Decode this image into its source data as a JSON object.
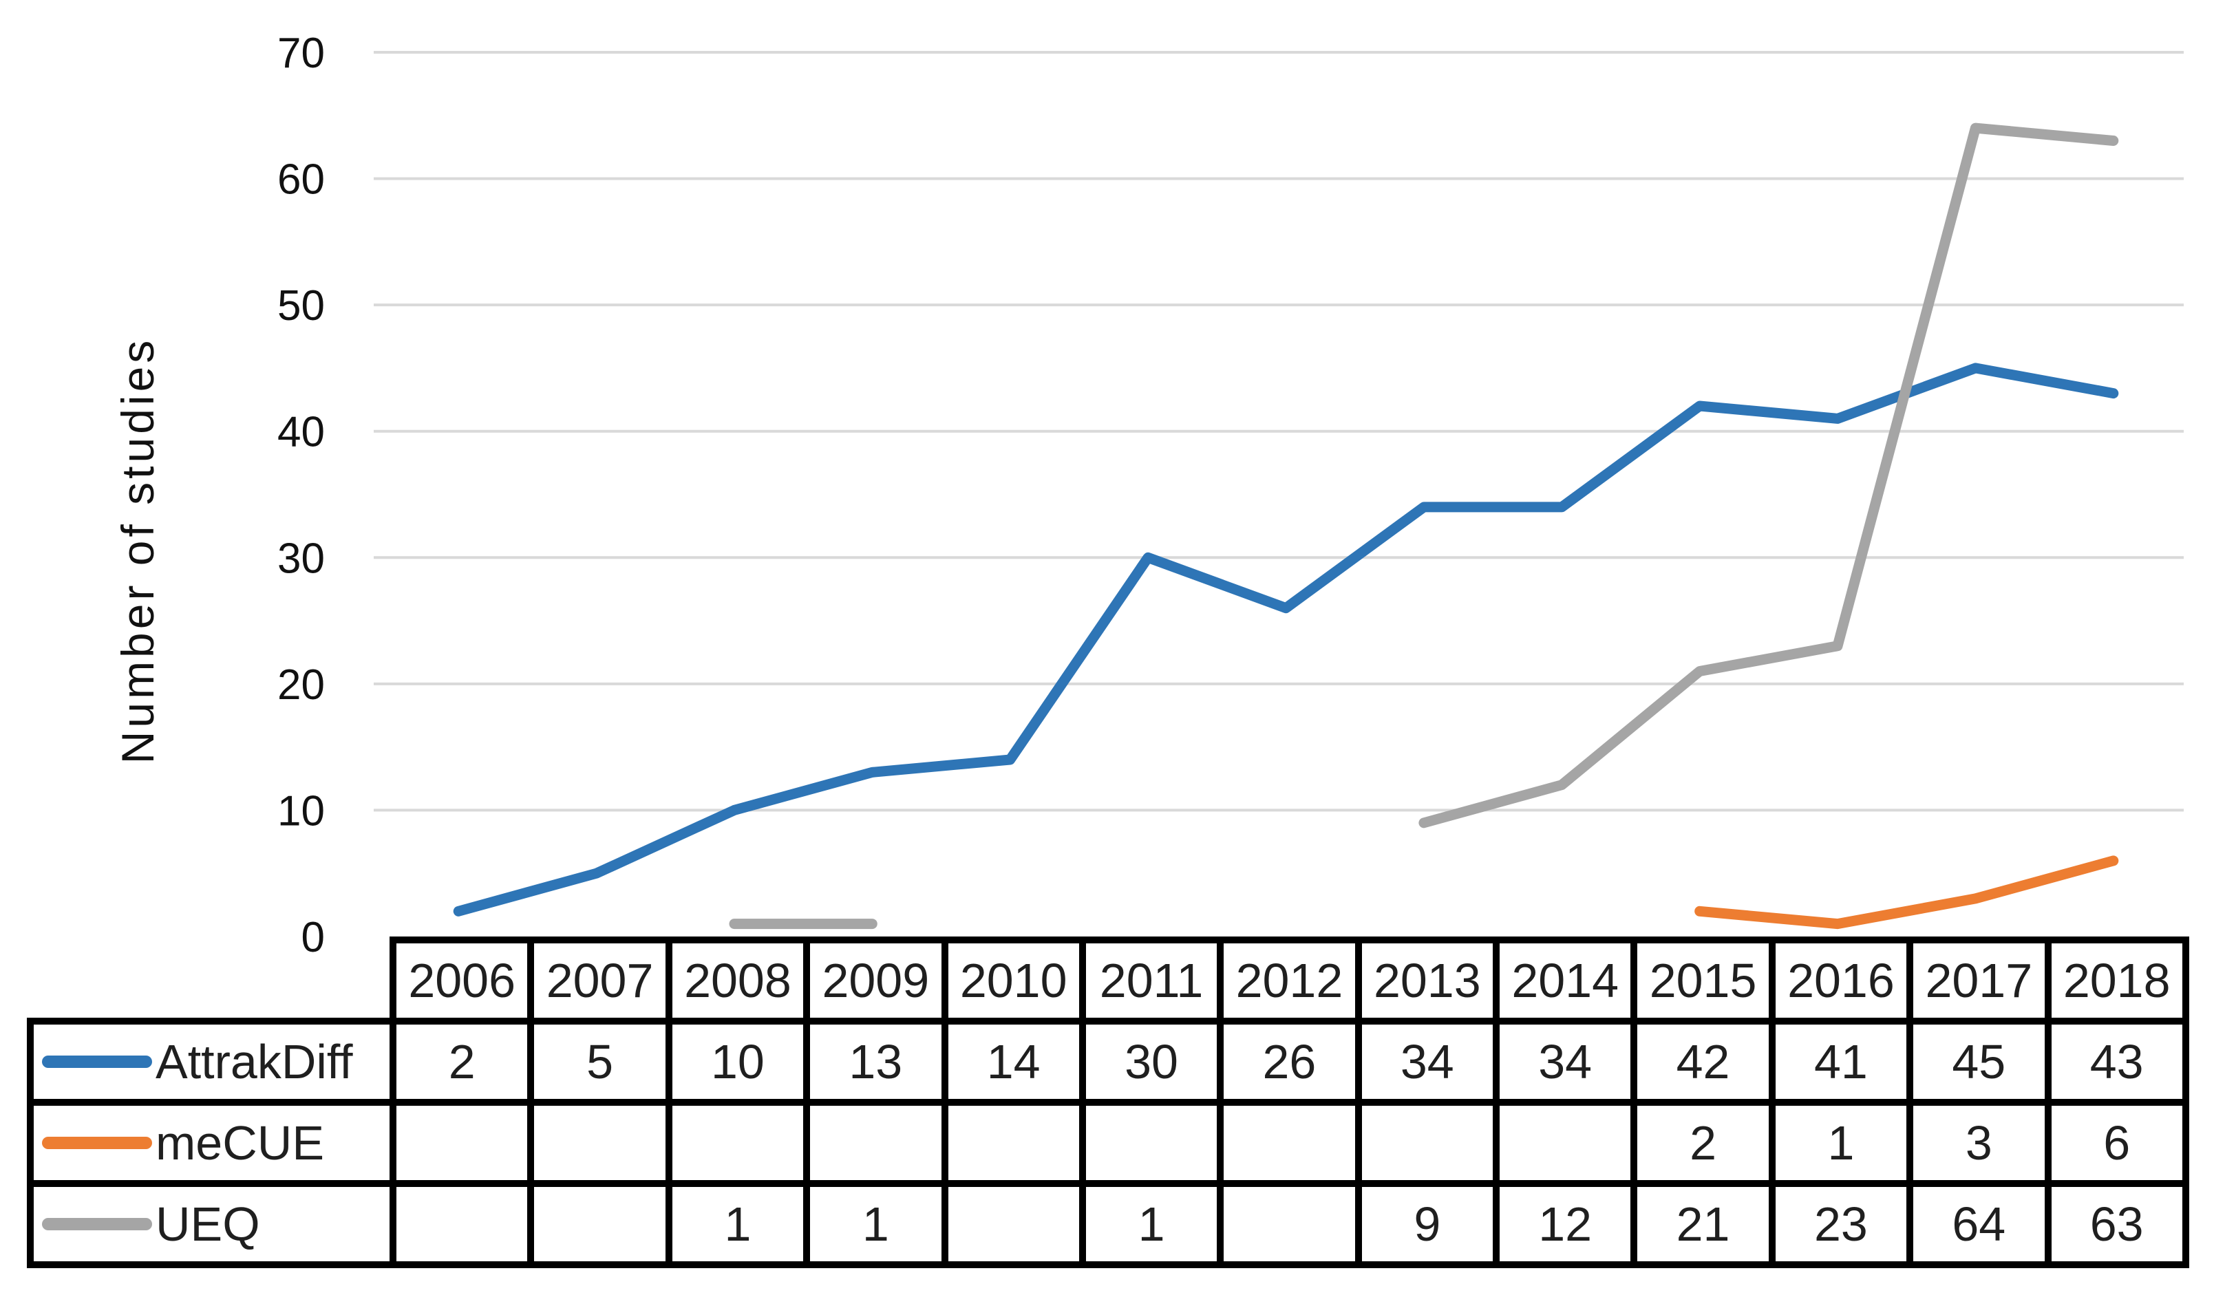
{
  "figure": {
    "background": "#FFFFFF",
    "text_color": "#1F1F1F"
  },
  "chart_data": {
    "type": "line",
    "title": "",
    "xlabel": "",
    "ylabel": "Number of studies",
    "categories": [
      "2006",
      "2007",
      "2008",
      "2009",
      "2010",
      "2011",
      "2012",
      "2013",
      "2014",
      "2015",
      "2016",
      "2017",
      "2018"
    ],
    "yticks": [
      0,
      10,
      20,
      30,
      40,
      50,
      60,
      70
    ],
    "ylim": [
      0,
      70
    ],
    "grid": true,
    "gridline_color": "#D9D9D9",
    "missing_values": "gaps",
    "legend_position": "data-table-left",
    "series": [
      {
        "name": "AttrakDiff",
        "color": "#2E75B6",
        "values": [
          2,
          5,
          10,
          13,
          14,
          30,
          26,
          34,
          34,
          42,
          41,
          45,
          43
        ]
      },
      {
        "name": "meCUE",
        "color": "#ED7D31",
        "values": [
          null,
          null,
          null,
          null,
          null,
          null,
          null,
          null,
          null,
          2,
          1,
          3,
          6
        ]
      },
      {
        "name": "UEQ",
        "color": "#A5A5A5",
        "values": [
          null,
          null,
          1,
          1,
          null,
          1,
          null,
          9,
          12,
          21,
          23,
          64,
          63
        ]
      }
    ]
  }
}
